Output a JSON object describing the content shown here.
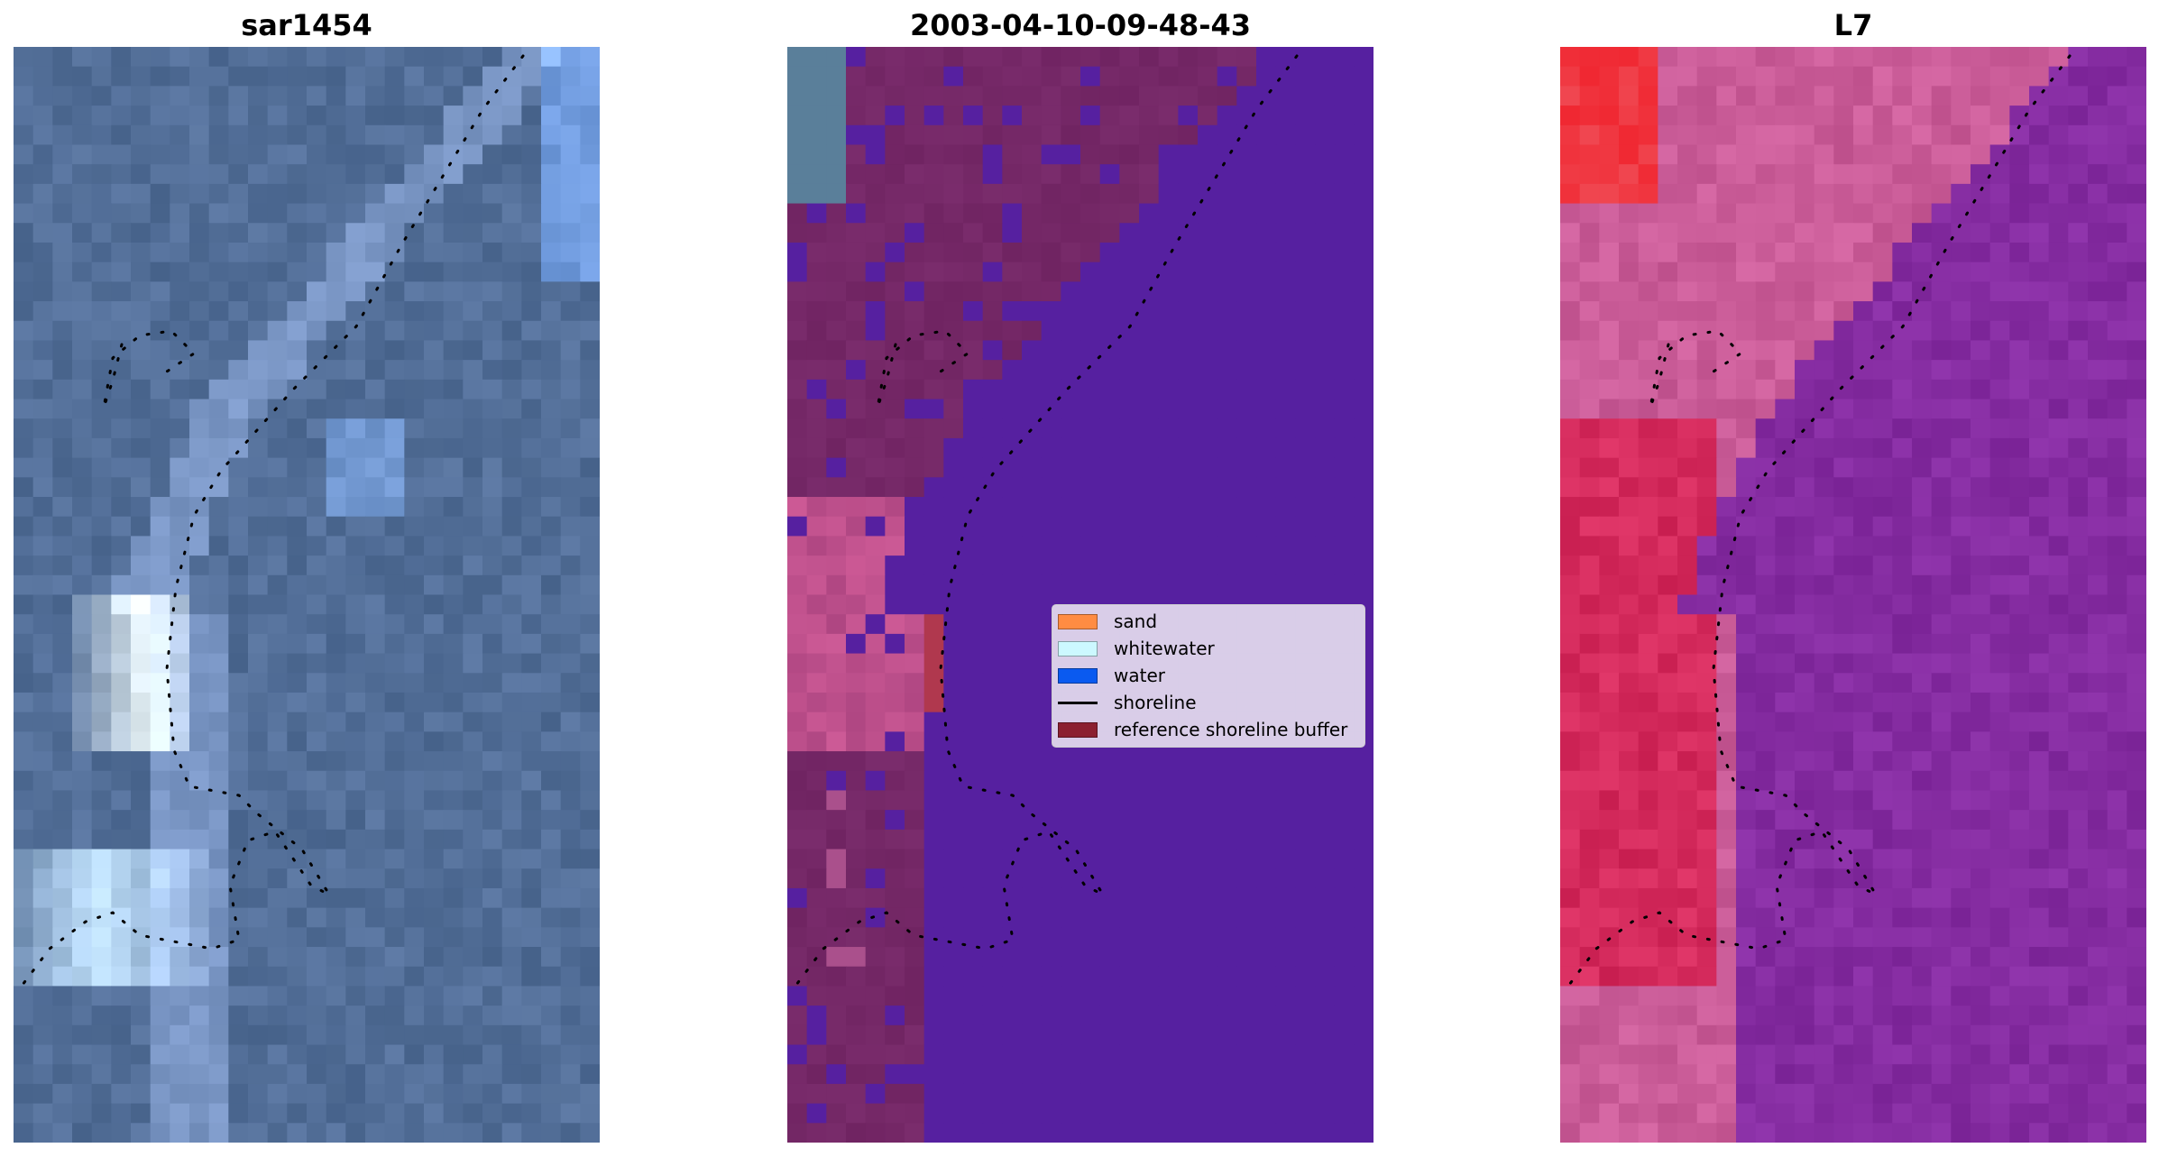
{
  "panels": [
    {
      "title": "sar1454",
      "image": "satellite RGB composite (blue ocean, bright whitewater)"
    },
    {
      "title": "2003-04-10-09-48-43",
      "image": "classified image overlay (purple water, pink land, red buffer)"
    },
    {
      "title": "L7",
      "image": "index map (magenta/red land, purple water)"
    }
  ],
  "legend": {
    "items": [
      {
        "label": "sand",
        "color": "#ff8c42",
        "kind": "patch"
      },
      {
        "label": "whitewater",
        "color": "#ccf8ff",
        "kind": "patch"
      },
      {
        "label": "water",
        "color": "#0a5af0",
        "kind": "patch"
      },
      {
        "label": "shoreline",
        "color": "#000000",
        "kind": "line"
      },
      {
        "label": "reference shoreline buffer",
        "color": "#8b2030",
        "kind": "patch"
      }
    ]
  },
  "colors": {
    "sar_base": "#4a6896",
    "class_water": "#56209a",
    "class_land": "#7a2868",
    "l7_water": "#84279a",
    "l7_land": "#c65a9a"
  }
}
